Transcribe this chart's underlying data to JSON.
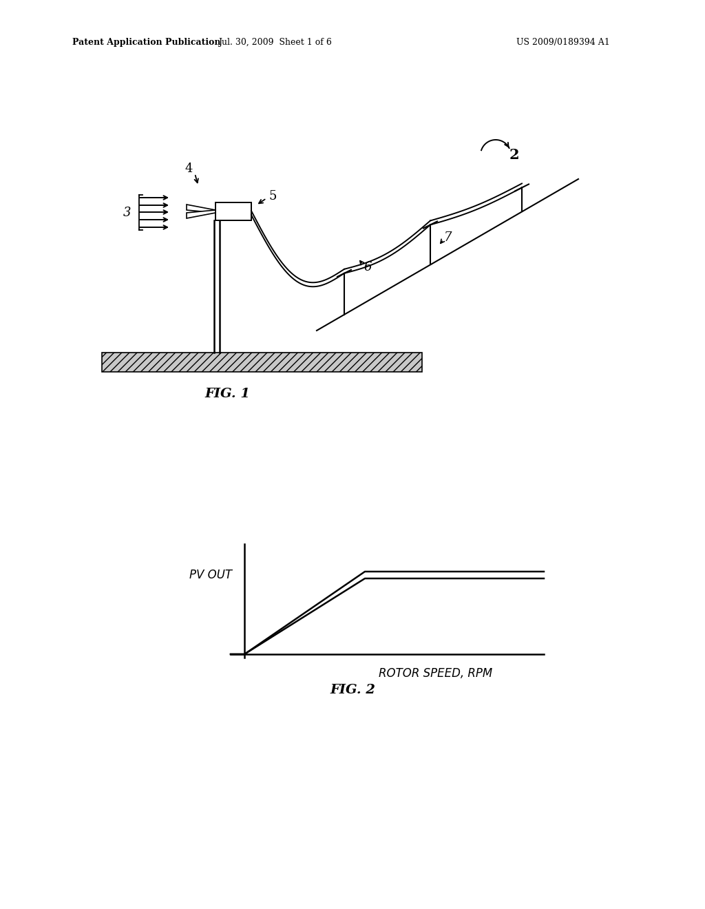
{
  "background_color": "#ffffff",
  "header_left": "Patent Application Publication",
  "header_mid": "Jul. 30, 2009  Sheet 1 of 6",
  "header_right": "US 2009/0189394 A1",
  "fig1_label": "FIG. 1",
  "fig2_label": "FIG. 2",
  "fig2_xlabel": "ROTOR SPEED, RPM",
  "fig2_ylabel": "PV OUT",
  "label_2": "2",
  "label_3": "3",
  "label_4": "4",
  "label_5": "5",
  "label_6": "6",
  "label_7": "7",
  "line_color": "#000000"
}
